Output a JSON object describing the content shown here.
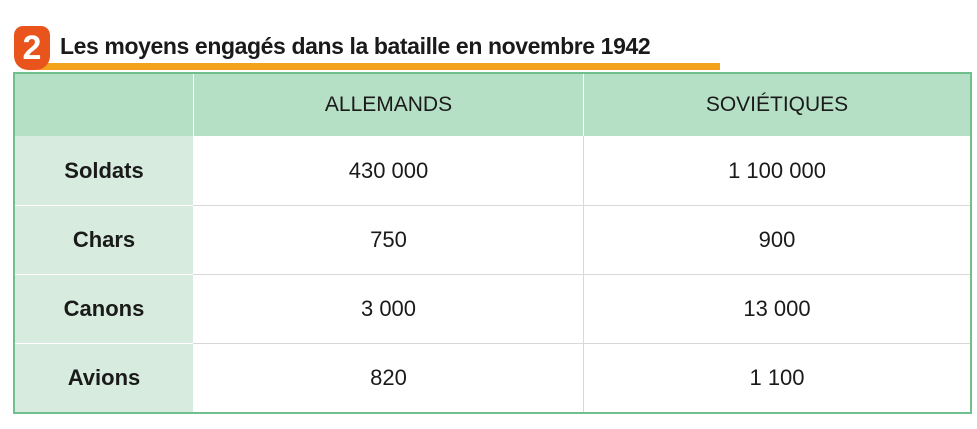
{
  "header": {
    "number": "2",
    "title": "Les moyens engagés dans la bataille en novembre 1942"
  },
  "table": {
    "columns": [
      "",
      "ALLEMANDS",
      "SOVIÉTIQUES"
    ],
    "rows": [
      {
        "label": "Soldats",
        "allemands": "430 000",
        "sovietiques": "1 100 000"
      },
      {
        "label": "Chars",
        "allemands": "750",
        "sovietiques": "900"
      },
      {
        "label": "Canons",
        "allemands": "3 000",
        "sovietiques": "13 000"
      },
      {
        "label": "Avions",
        "allemands": "820",
        "sovietiques": "1 100"
      }
    ]
  },
  "colors": {
    "badge": "#e8541c",
    "underline": "#f2a21d",
    "header_row": "#b6e0c5",
    "label_column": "#d7ecdf",
    "border": "#6fbf8f"
  }
}
